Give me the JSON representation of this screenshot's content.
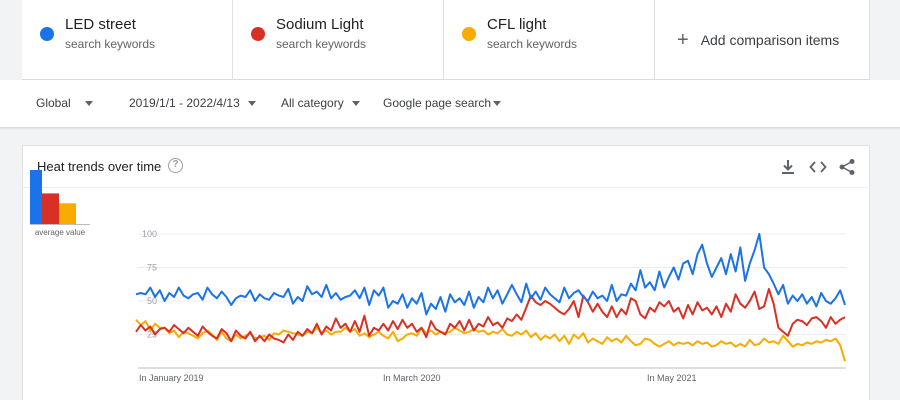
{
  "terms": [
    {
      "name": "LED street",
      "sub": "search keywords",
      "color": "#1a73e8"
    },
    {
      "name": "Sodium Light",
      "sub": "search keywords",
      "color": "#d93025"
    },
    {
      "name": "CFL light",
      "sub": "search keywords",
      "color": "#f9ab00"
    }
  ],
  "add_item": {
    "label": "Add comparison items"
  },
  "filters": {
    "region": "Global",
    "date_range": "2019/1/1 - 2022/4/13",
    "category": "All category",
    "search_type": "Google page search"
  },
  "card": {
    "title": "Heat trends over time"
  },
  "avg": {
    "label": "average value",
    "values": [
      60,
      34,
      23
    ]
  },
  "chart_data": {
    "type": "line",
    "title": "Heat trends over time",
    "y_ticks": [
      "100",
      "75",
      "50",
      "25"
    ],
    "ylim": [
      0,
      100
    ],
    "x_ticks": [
      "In January 2019",
      "In March 2020",
      "In May 2021"
    ],
    "grid": true,
    "series": [
      {
        "name": "LED street",
        "color": "#1a73e8",
        "values": [
          55,
          56,
          55,
          60,
          53,
          58,
          50,
          56,
          53,
          60,
          54,
          52,
          55,
          56,
          51,
          60,
          55,
          52,
          57,
          53,
          47,
          52,
          54,
          53,
          58,
          50,
          55,
          52,
          51,
          56,
          54,
          53,
          59,
          48,
          53,
          50,
          61,
          55,
          57,
          53,
          62,
          52,
          56,
          51,
          53,
          54,
          58,
          52,
          60,
          47,
          58,
          54,
          60,
          45,
          50,
          48,
          55,
          45,
          52,
          48,
          56,
          40,
          48,
          44,
          53,
          42,
          55,
          49,
          52,
          47,
          57,
          45,
          53,
          49,
          60,
          52,
          58,
          48,
          55,
          62,
          55,
          49,
          63,
          52,
          57,
          51,
          60,
          55,
          52,
          49,
          60,
          52,
          56,
          58,
          53,
          50,
          57,
          52,
          54,
          50,
          62,
          50,
          55,
          54,
          63,
          58,
          73,
          60,
          64,
          58,
          72,
          60,
          68,
          75,
          66,
          78,
          80,
          70,
          85,
          92,
          78,
          68,
          75,
          82,
          70,
          85,
          72,
          90,
          65,
          78,
          88,
          100,
          75,
          70,
          63,
          55,
          62,
          48,
          54,
          50,
          55,
          48,
          53,
          46,
          56,
          50,
          48,
          52,
          58,
          47
        ]
      },
      {
        "name": "Sodium Light",
        "color": "#d93025",
        "values": [
          27,
          32,
          28,
          31,
          25,
          29,
          30,
          27,
          32,
          29,
          26,
          30,
          27,
          24,
          31,
          27,
          24,
          22,
          29,
          26,
          20,
          28,
          24,
          22,
          27,
          20,
          24,
          20,
          25,
          22,
          21,
          19,
          25,
          21,
          27,
          24,
          29,
          26,
          33,
          25,
          31,
          28,
          37,
          30,
          33,
          27,
          35,
          27,
          39,
          24,
          30,
          28,
          33,
          28,
          35,
          29,
          36,
          30,
          33,
          27,
          30,
          23,
          35,
          29,
          27,
          25,
          33,
          30,
          35,
          28,
          36,
          28,
          33,
          31,
          38,
          32,
          34,
          30,
          37,
          35,
          40,
          36,
          45,
          54,
          49,
          47,
          50,
          48,
          45,
          42,
          40,
          44,
          50,
          38,
          54,
          49,
          42,
          48,
          42,
          38,
          46,
          38,
          44,
          40,
          52,
          50,
          40,
          37,
          45,
          42,
          49,
          46,
          50,
          42,
          45,
          37,
          47,
          40,
          49,
          43,
          45,
          40,
          46,
          38,
          48,
          42,
          55,
          48,
          45,
          50,
          57,
          44,
          46,
          59,
          48,
          30,
          27,
          24,
          33,
          36,
          35,
          32,
          37,
          38,
          35,
          30,
          38,
          33,
          36,
          38
        ]
      },
      {
        "name": "CFL light",
        "color": "#f9ab00",
        "values": [
          36,
          32,
          35,
          28,
          33,
          30,
          30,
          26,
          28,
          23,
          27,
          26,
          24,
          22,
          26,
          28,
          25,
          21,
          27,
          22,
          20,
          25,
          22,
          24,
          26,
          22,
          23,
          24,
          21,
          26,
          25,
          28,
          27,
          26,
          25,
          24,
          27,
          26,
          30,
          26,
          28,
          25,
          27,
          27,
          30,
          27,
          29,
          24,
          26,
          23,
          25,
          27,
          24,
          22,
          27,
          20,
          22,
          25,
          26,
          24,
          30,
          26,
          28,
          25,
          27,
          26,
          27,
          30,
          28,
          26,
          27,
          29,
          27,
          28,
          25,
          27,
          26,
          29,
          25,
          24,
          27,
          25,
          28,
          23,
          26,
          21,
          24,
          22,
          25,
          20,
          24,
          18,
          25,
          22,
          26,
          19,
          22,
          20,
          18,
          23,
          20,
          22,
          19,
          24,
          20,
          17,
          18,
          22,
          21,
          18,
          16,
          18,
          20,
          17,
          19,
          18,
          19,
          17,
          20,
          18,
          19,
          16,
          17,
          20,
          18,
          19,
          16,
          18,
          16,
          21,
          17,
          18,
          22,
          19,
          20,
          18,
          24,
          20,
          16,
          18,
          17,
          19,
          18,
          20,
          19,
          21,
          20,
          22,
          17,
          5
        ]
      }
    ]
  }
}
